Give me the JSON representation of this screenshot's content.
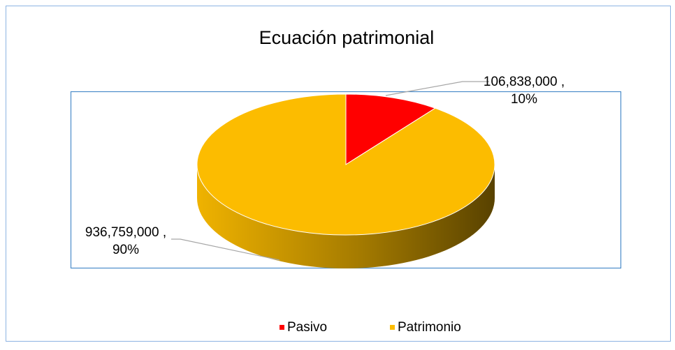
{
  "chart_data": {
    "type": "pie",
    "title": "Ecuación patrimonial",
    "categories": [
      "Pasivo",
      "Patrimonio"
    ],
    "values": [
      106838000,
      936759000
    ],
    "value_labels": [
      [
        "106,838,000 ,",
        "10%"
      ],
      [
        "936,759,000 ,",
        "90%"
      ]
    ],
    "colors": [
      "#ff0000",
      "#fcbc00"
    ],
    "view": "3d",
    "legend": "bottom"
  }
}
